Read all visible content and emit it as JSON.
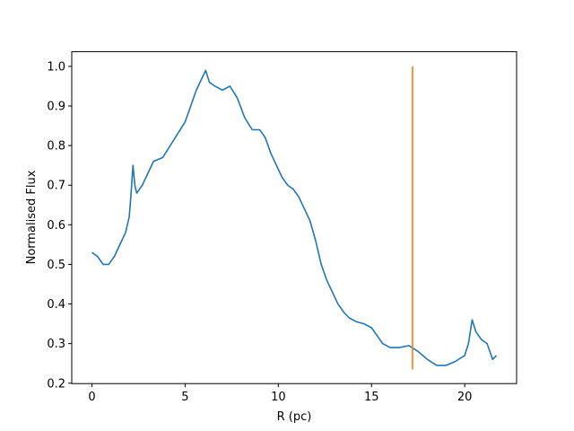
{
  "chart_data": {
    "type": "line",
    "xlabel": "R (pc)",
    "ylabel": "Normalised Flux",
    "xlim": [
      -1.085,
      22.785
    ],
    "ylim": [
      0.199,
      1.037
    ],
    "xticks": [
      0,
      5,
      10,
      15,
      20
    ],
    "yticks": [
      0.2,
      0.3,
      0.4,
      0.5,
      0.6,
      0.7,
      0.8,
      0.9,
      {
        "value": 1,
        "label": "1.0"
      }
    ],
    "series": [
      {
        "color": "#1f77b4",
        "x": [
          0.0,
          0.3,
          0.6,
          0.9,
          1.2,
          1.5,
          1.8,
          2.0,
          2.1,
          2.2,
          2.3,
          2.4,
          2.7,
          3.0,
          3.3,
          3.8,
          4.2,
          4.6,
          5.0,
          5.3,
          5.6,
          5.9,
          6.1,
          6.3,
          6.6,
          7.0,
          7.4,
          7.8,
          8.2,
          8.6,
          9.0,
          9.3,
          9.6,
          9.9,
          10.2,
          10.5,
          10.8,
          11.1,
          11.4,
          11.7,
          12.0,
          12.3,
          12.6,
          12.9,
          13.2,
          13.5,
          13.8,
          14.2,
          14.6,
          15.0,
          15.3,
          15.6,
          16.0,
          16.5,
          17.0,
          17.5,
          18.0,
          18.5,
          19.0,
          19.5,
          20.0,
          20.2,
          20.4,
          20.6,
          20.9,
          21.2,
          21.5,
          21.7
        ],
        "values": [
          0.53,
          0.52,
          0.5,
          0.5,
          0.52,
          0.55,
          0.58,
          0.62,
          0.68,
          0.75,
          0.7,
          0.68,
          0.7,
          0.73,
          0.76,
          0.77,
          0.8,
          0.83,
          0.86,
          0.9,
          0.94,
          0.97,
          0.99,
          0.96,
          0.95,
          0.94,
          0.95,
          0.92,
          0.87,
          0.84,
          0.84,
          0.82,
          0.78,
          0.75,
          0.72,
          0.7,
          0.69,
          0.67,
          0.64,
          0.61,
          0.56,
          0.5,
          0.46,
          0.43,
          0.4,
          0.38,
          0.365,
          0.355,
          0.35,
          0.34,
          0.32,
          0.3,
          0.29,
          0.29,
          0.295,
          0.28,
          0.26,
          0.245,
          0.245,
          0.255,
          0.27,
          0.3,
          0.36,
          0.33,
          0.31,
          0.3,
          0.26,
          0.27
        ]
      },
      {
        "color": "#ff7f0e",
        "x": [
          17.2,
          17.2
        ],
        "values": [
          0.235,
          1.0
        ]
      }
    ]
  }
}
